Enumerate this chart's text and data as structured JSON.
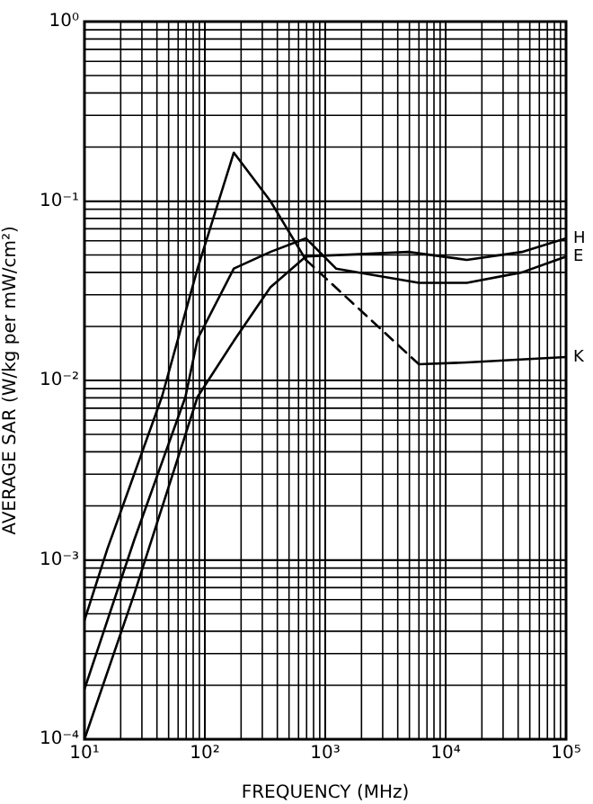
{
  "chart_data": {
    "type": "line",
    "xlabel": "FREQUENCY (MHz)",
    "ylabel": "AVERAGE SAR (W/kg per mW/cm²)",
    "log": "xy",
    "grid": true,
    "legend": false,
    "marker": "none",
    "xlim": [
      10,
      100000
    ],
    "ylim": [
      0.0001,
      1
    ],
    "xticks": [
      {
        "value": 10,
        "label": "10¹"
      },
      {
        "value": 100,
        "label": "10²"
      },
      {
        "value": 1000,
        "label": "10³"
      },
      {
        "value": 10000,
        "label": "10⁴"
      },
      {
        "value": 100000,
        "label": "10⁵"
      }
    ],
    "yticks": [
      {
        "value": 0.0001,
        "label": "10⁻⁴"
      },
      {
        "value": 0.001,
        "label": "10⁻³"
      },
      {
        "value": 0.01,
        "label": "10⁻²"
      },
      {
        "value": 0.1,
        "label": "10⁻¹"
      },
      {
        "value": 1,
        "label": "10⁰"
      }
    ],
    "series": [
      {
        "name": "H",
        "color": "#000000",
        "line_style": "solid",
        "x": [
          10,
          26,
          87,
          174,
          350,
          690,
          4900,
          15000,
          43000,
          100000
        ],
        "values": [
          0.0001,
          0.00065,
          0.0081,
          0.0166,
          0.033,
          0.049,
          0.052,
          0.047,
          0.052,
          0.062
        ]
      },
      {
        "name": "E",
        "color": "#000000",
        "line_style": "solid",
        "x": [
          10,
          26,
          69,
          87,
          174,
          350,
          690,
          1230,
          6000,
          15000,
          43000,
          100000
        ],
        "values": [
          0.00019,
          0.0013,
          0.0081,
          0.017,
          0.042,
          0.052,
          0.062,
          0.042,
          0.035,
          0.035,
          0.04,
          0.049
        ]
      },
      {
        "color": "#000000",
        "line_style": "solid",
        "x": [
          10,
          15.5,
          44,
          87,
          174,
          350,
          690
        ],
        "values": [
          0.00046,
          0.00115,
          0.0081,
          0.042,
          0.186,
          0.1,
          0.047
        ]
      },
      {
        "color": "#000000",
        "line_style": "dashed",
        "x": [
          690,
          6000
        ],
        "values": [
          0.047,
          0.0123
        ]
      },
      {
        "name": "K",
        "color": "#000000",
        "line_style": "solid",
        "x": [
          6000,
          15000,
          100000
        ],
        "values": [
          0.0123,
          0.0126,
          0.0135
        ]
      }
    ]
  }
}
